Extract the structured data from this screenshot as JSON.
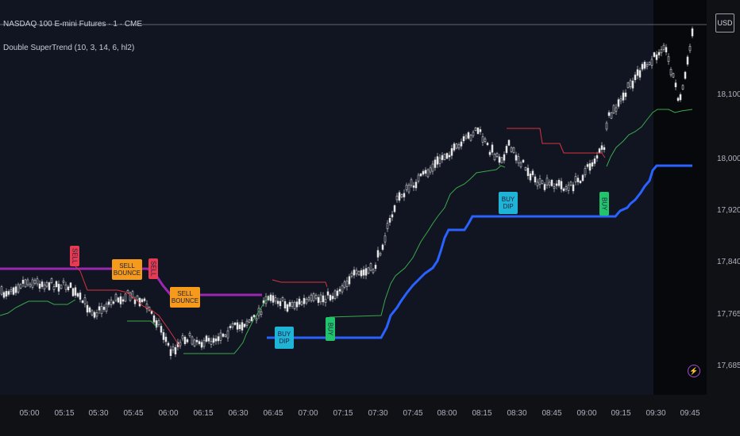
{
  "header": {
    "symbol_title": "NASDAQ 100 E-mini Futures · 1 · CME",
    "indicator_title": "Double SuperTrend (10, 3, 14, 6, hl2)"
  },
  "currency": "USD",
  "price_axis": [
    "18,100.00",
    "18,000.00",
    "17,920.00",
    "17,840.00",
    "17,765.00",
    "17,685.00"
  ],
  "time_axis": [
    "05:00",
    "05:15",
    "05:30",
    "05:45",
    "06:00",
    "06:15",
    "06:30",
    "06:45",
    "07:00",
    "07:15",
    "07:30",
    "07:45",
    "08:00",
    "08:15",
    "08:30",
    "08:45",
    "09:00",
    "09:15",
    "09:30",
    "09:45"
  ],
  "signals": [
    {
      "label": "SELL",
      "color": "#e83b52"
    },
    {
      "label": "SELL BOUNCE",
      "color": "#f59a1b"
    },
    {
      "label": "SELL",
      "color": "#e83b52"
    },
    {
      "label": "SELL BOUNCE",
      "color": "#f59a1b"
    },
    {
      "label": "BUY DIP",
      "color": "#1fb3d6"
    },
    {
      "label": "BUY",
      "color": "#21c46b"
    },
    {
      "label": "BUY DIP",
      "color": "#1fb3d6"
    },
    {
      "label": "BUY",
      "color": "#21c46b"
    }
  ],
  "colors": {
    "background": "#111522",
    "candle": "#e6e6e6",
    "fast_trend_up": "#3aa84a",
    "fast_trend_down": "#d9333f",
    "slow_trend_up": "#2962ff",
    "slow_trend_down": "#9c27b0"
  },
  "icons": {
    "flash": "lightning-icon"
  }
}
